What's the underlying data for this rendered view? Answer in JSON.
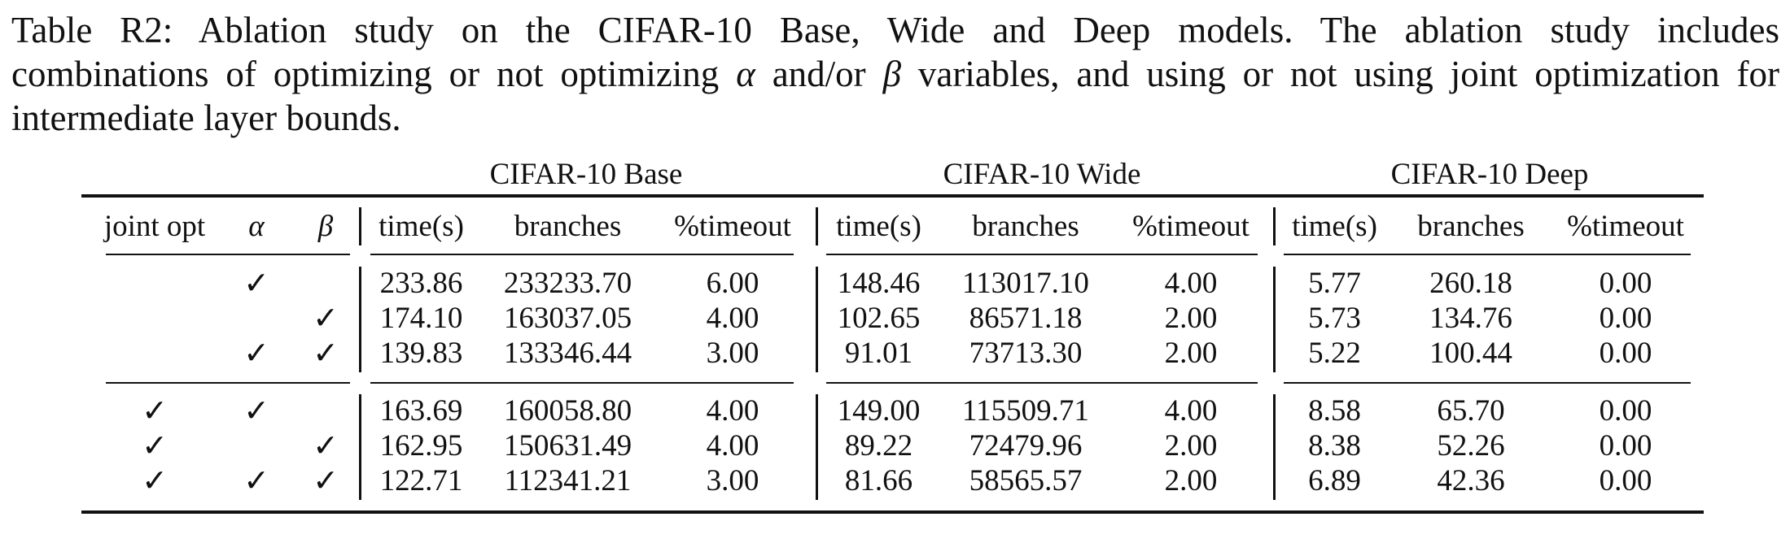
{
  "caption": {
    "line1": "Table R2:  Ablation study on the CIFAR-10 Base, Wide and Deep models.  The ablation study includes",
    "line2_a": "combinations of optimizing or not optimizing ",
    "alpha": "α",
    "line2_b": " and/or ",
    "beta": "β",
    "line2_c": " variables, and using or not using joint optimization for",
    "line3": "intermediate layer bounds."
  },
  "table": {
    "group_headers": [
      "CIFAR-10 Base",
      "CIFAR-10 Wide",
      "CIFAR-10 Deep"
    ],
    "col_headers": {
      "joint": "joint opt",
      "alpha": "α",
      "beta": "β",
      "time": "time(s)",
      "branches": "branches",
      "timeout": "%timeout"
    },
    "check_mark": "✓",
    "rows": [
      {
        "joint": "",
        "alpha": "✓",
        "beta": "",
        "base": [
          "233.86",
          "233233.70",
          "6.00"
        ],
        "wide": [
          "148.46",
          "113017.10",
          "4.00"
        ],
        "deep": [
          "5.77",
          "260.18",
          "0.00"
        ]
      },
      {
        "joint": "",
        "alpha": "",
        "beta": "✓",
        "base": [
          "174.10",
          "163037.05",
          "4.00"
        ],
        "wide": [
          "102.65",
          "86571.18",
          "2.00"
        ],
        "deep": [
          "5.73",
          "134.76",
          "0.00"
        ]
      },
      {
        "joint": "",
        "alpha": "✓",
        "beta": "✓",
        "base": [
          "139.83",
          "133346.44",
          "3.00"
        ],
        "wide": [
          "91.01",
          "73713.30",
          "2.00"
        ],
        "deep": [
          "5.22",
          "100.44",
          "0.00"
        ]
      },
      {
        "joint": "✓",
        "alpha": "✓",
        "beta": "",
        "base": [
          "163.69",
          "160058.80",
          "4.00"
        ],
        "wide": [
          "149.00",
          "115509.71",
          "4.00"
        ],
        "deep": [
          "8.58",
          "65.70",
          "0.00"
        ]
      },
      {
        "joint": "✓",
        "alpha": "",
        "beta": "✓",
        "base": [
          "162.95",
          "150631.49",
          "4.00"
        ],
        "wide": [
          "89.22",
          "72479.96",
          "2.00"
        ],
        "deep": [
          "8.38",
          "52.26",
          "0.00"
        ]
      },
      {
        "joint": "✓",
        "alpha": "✓",
        "beta": "✓",
        "base": [
          "122.71",
          "112341.21",
          "3.00"
        ],
        "wide": [
          "81.66",
          "58565.57",
          "2.00"
        ],
        "deep": [
          "6.89",
          "42.36",
          "0.00"
        ]
      }
    ]
  }
}
